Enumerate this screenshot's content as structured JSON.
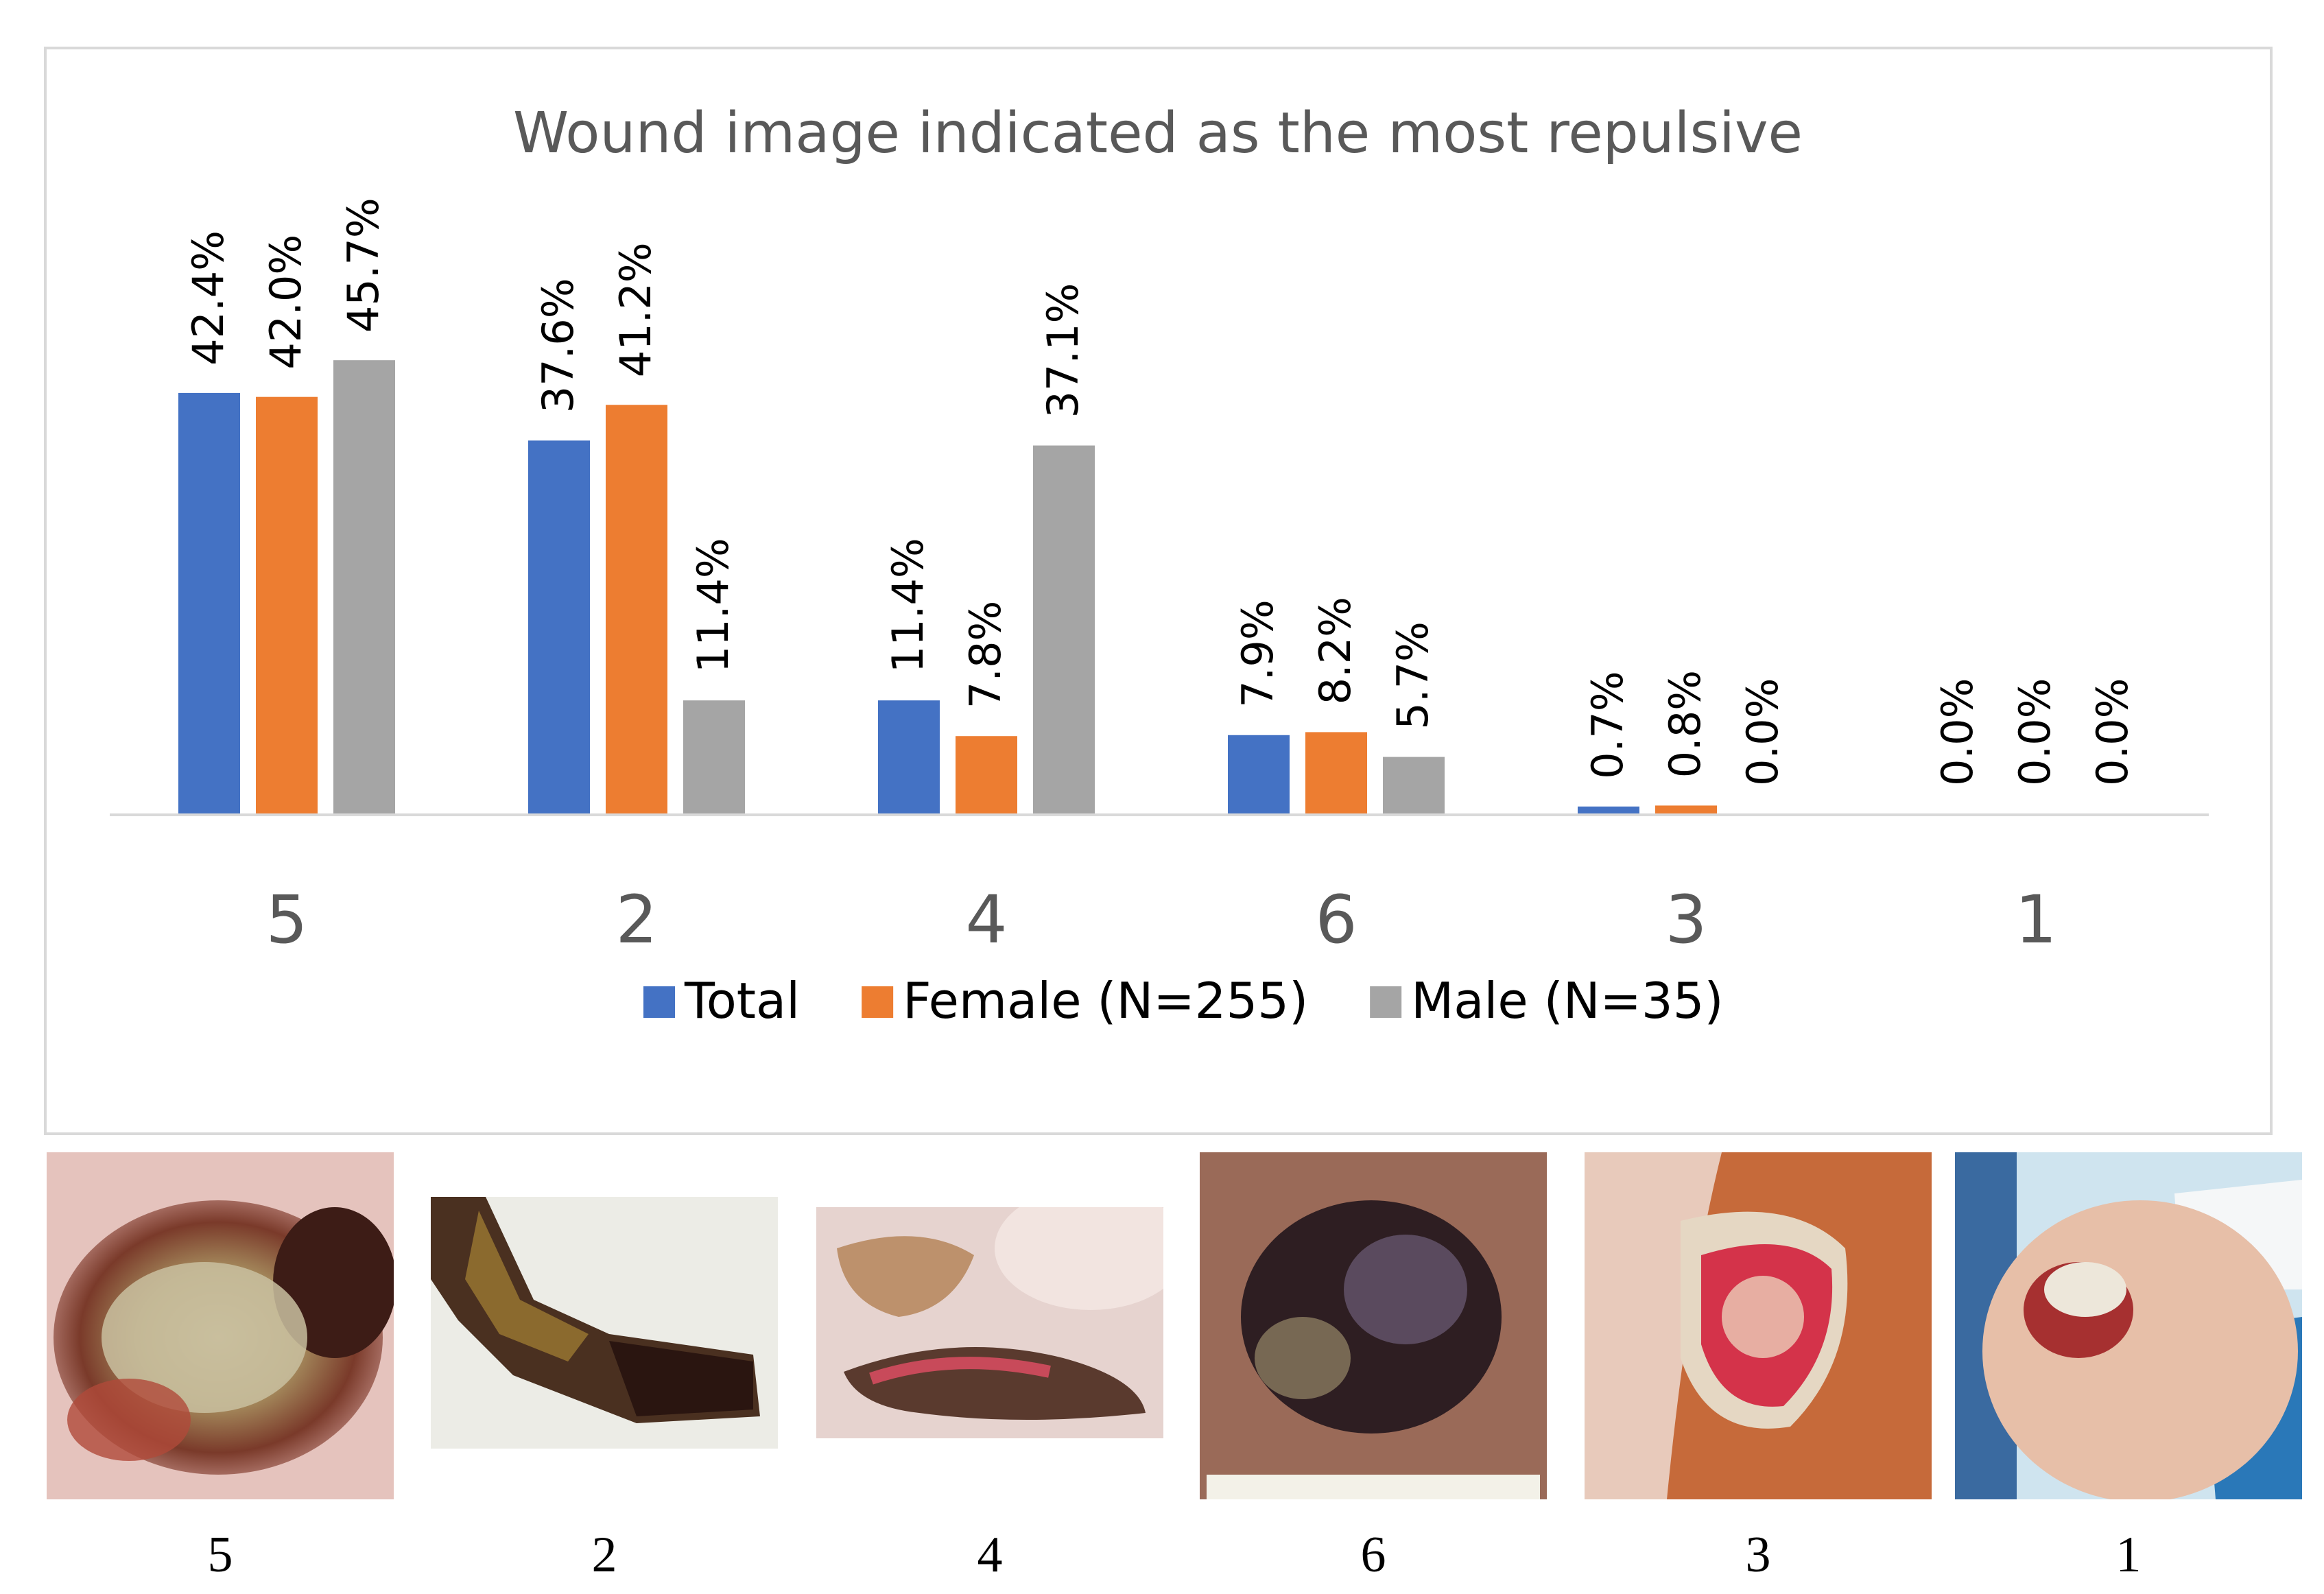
{
  "chart_data": {
    "type": "bar",
    "title": "Wound image indicated as the most repulsive",
    "categories": [
      "5",
      "2",
      "4",
      "6",
      "3",
      "1"
    ],
    "series": [
      {
        "name": "Total",
        "color": "#4472C4",
        "values": [
          42.4,
          37.6,
          11.4,
          7.9,
          0.7,
          0.0
        ],
        "labels": [
          "42.4%",
          "37.6%",
          "11.4%",
          "7.9%",
          "0.7%",
          "0.0%"
        ]
      },
      {
        "name": "Female (N=255)",
        "color": "#ED7D31",
        "values": [
          42.0,
          41.2,
          7.8,
          8.2,
          0.8,
          0.0
        ],
        "labels": [
          "42.0%",
          "41.2%",
          "7.8%",
          "8.2%",
          "0.8%",
          "0.0%"
        ]
      },
      {
        "name": "Male (N=35)",
        "color": "#A5A5A5",
        "values": [
          45.7,
          11.4,
          37.1,
          5.7,
          0.0,
          0.0
        ],
        "labels": [
          "45.7%",
          "11.4%",
          "37.1%",
          "5.7%",
          "0.0%",
          "0.0%"
        ]
      }
    ],
    "xlabel": "",
    "ylabel": "",
    "ylim": [
      0,
      50
    ],
    "grid": false,
    "legend": "bottom"
  },
  "photos": {
    "captions": [
      "5",
      "2",
      "4",
      "6",
      "3",
      "1"
    ]
  }
}
